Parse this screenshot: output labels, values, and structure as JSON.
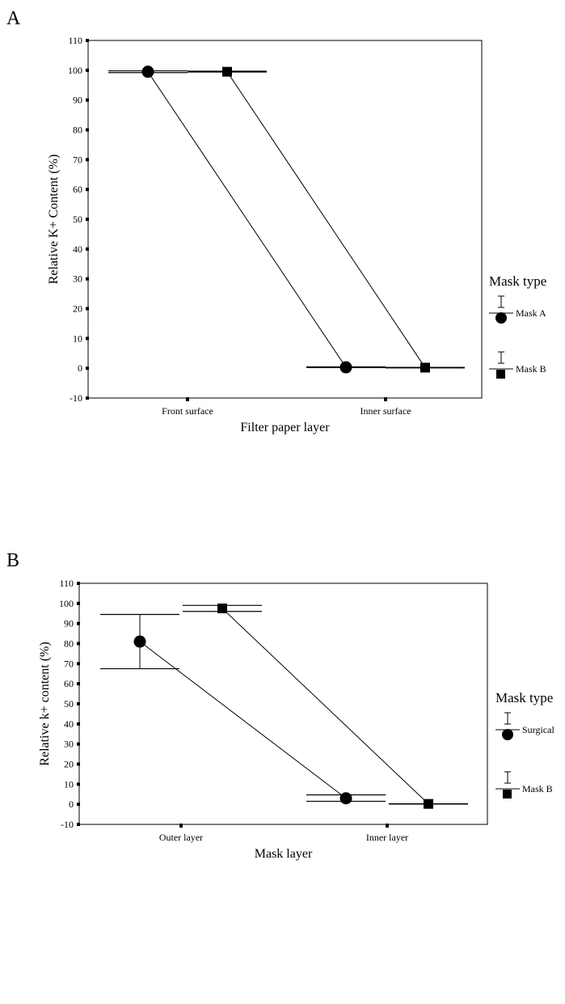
{
  "panels": [
    {
      "letter": "A",
      "xlabel": "Filter paper layer",
      "ylabel": "Relative K+ Content (%)",
      "legend_title": "Mask type",
      "legend": [
        {
          "name": "Mask A",
          "marker": "circle"
        },
        {
          "name": "Mask B",
          "marker": "square"
        }
      ]
    },
    {
      "letter": "B",
      "xlabel": "Mask layer",
      "ylabel": "Relative k+ content (%)",
      "legend_title": "Mask type",
      "legend": [
        {
          "name": "Surgical",
          "marker": "circle"
        },
        {
          "name": "Mask B",
          "marker": "square"
        }
      ]
    }
  ],
  "chart_data": [
    {
      "type": "line",
      "categories": [
        "Front surface",
        "Inner surface"
      ],
      "xlabel": "Filter paper layer",
      "ylabel": "Relative K+ Content (%)",
      "ylim": [
        -10,
        110
      ],
      "yticks": [
        -10,
        0,
        10,
        20,
        30,
        40,
        50,
        60,
        70,
        80,
        90,
        100,
        110
      ],
      "legend_title": "Mask type",
      "legend_position": "right",
      "grid": false,
      "series": [
        {
          "name": "Mask A",
          "marker": "circle",
          "values": [
            99.5,
            0.3
          ],
          "err_low": [
            99.2,
            0.2
          ],
          "err_high": [
            99.8,
            0.5
          ]
        },
        {
          "name": "Mask B",
          "marker": "square",
          "values": [
            99.5,
            0.2
          ],
          "err_low": [
            99.4,
            0.1
          ],
          "err_high": [
            99.7,
            0.3
          ]
        }
      ]
    },
    {
      "type": "line",
      "categories": [
        "Outer layer",
        "Inner layer"
      ],
      "xlabel": "Mask layer",
      "ylabel": "Relative k+ content (%)",
      "ylim": [
        -10,
        110
      ],
      "yticks": [
        -10,
        0,
        10,
        20,
        30,
        40,
        50,
        60,
        70,
        80,
        90,
        100,
        110
      ],
      "legend_title": "Mask type",
      "legend_position": "right",
      "grid": false,
      "series": [
        {
          "name": "Surgical",
          "marker": "circle",
          "values": [
            81,
            3
          ],
          "err_low": [
            67.5,
            1.5
          ],
          "err_high": [
            94.5,
            4.7
          ]
        },
        {
          "name": "Mask B",
          "marker": "square",
          "values": [
            97.5,
            0.2
          ],
          "err_low": [
            96,
            0.1
          ],
          "err_high": [
            99,
            0.3
          ]
        }
      ]
    }
  ]
}
